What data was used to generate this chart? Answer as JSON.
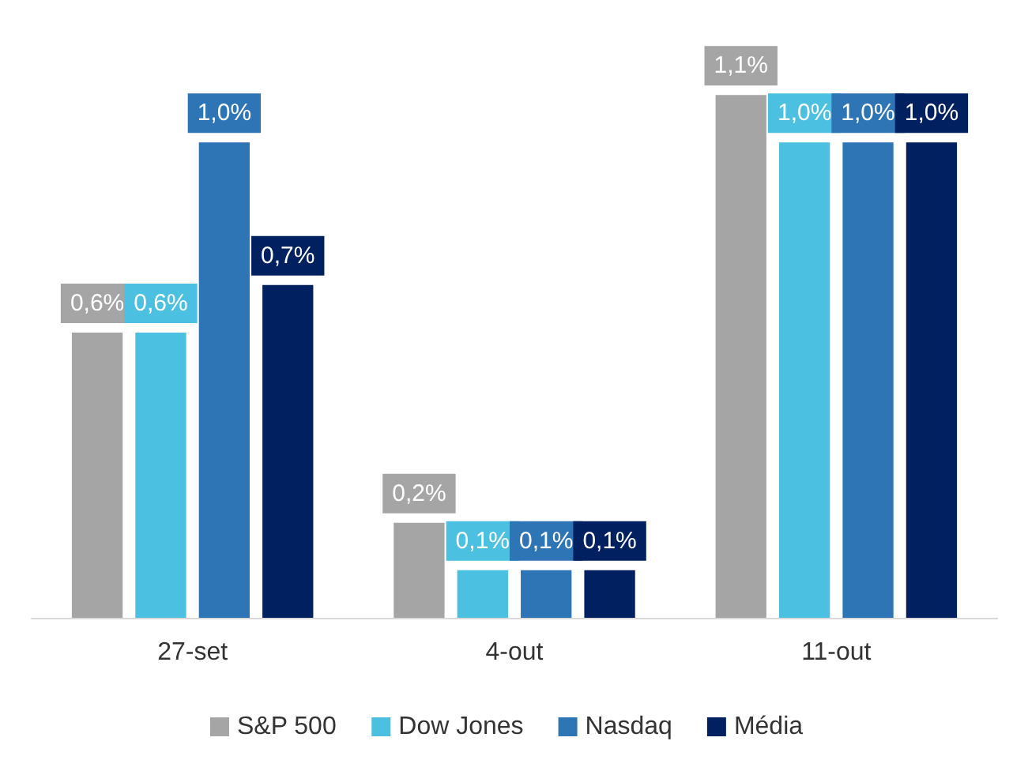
{
  "chart_data": {
    "type": "bar",
    "categories": [
      "27-set",
      "4-out",
      "11-out"
    ],
    "series": [
      {
        "name": "S&P 500",
        "color": "#a5a5a5",
        "values": [
          0.6,
          0.2,
          1.1
        ],
        "value_labels": [
          "0,6%",
          "0,2%",
          "1,1%"
        ]
      },
      {
        "name": "Dow Jones",
        "color": "#4bc0e0",
        "values": [
          0.6,
          0.1,
          1.0
        ],
        "value_labels": [
          "0,6%",
          "0,1%",
          "1,0%"
        ]
      },
      {
        "name": "Nasdaq",
        "color": "#2e75b6",
        "values": [
          1.0,
          0.1,
          1.0
        ],
        "value_labels": [
          "1,0%",
          "0,1%",
          "1,0%"
        ]
      },
      {
        "name": "Média",
        "color": "#002060",
        "values": [
          0.7,
          0.1,
          1.0
        ],
        "value_labels": [
          "0,7%",
          "0,1%",
          "1,0%"
        ]
      }
    ],
    "legend": "bottom"
  }
}
